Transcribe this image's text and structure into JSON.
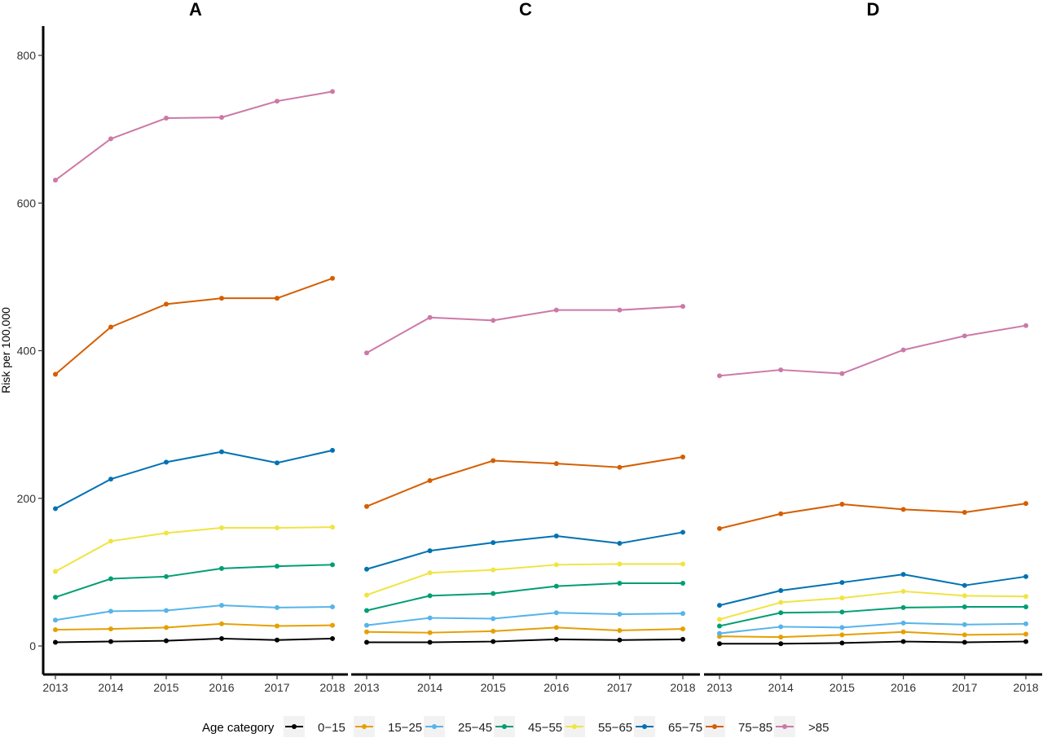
{
  "chart_data": {
    "type": "line",
    "ylabel": "Risk per 100,000",
    "ylim": [
      -40,
      840
    ],
    "yticks": [
      0,
      200,
      400,
      600,
      800
    ],
    "x": [
      "2013",
      "2014",
      "2015",
      "2016",
      "2017",
      "2018"
    ],
    "legend": {
      "title": "Age category",
      "placement": "bottom",
      "entries": [
        "0−15",
        "15−25",
        "25−45",
        "45−55",
        "55−65",
        "65−75",
        "75−85",
        ">85"
      ]
    },
    "colors": {
      "0−15": "#000000",
      "15−25": "#E69F00",
      "25−45": "#56B4E9",
      "45−55": "#009E73",
      "55−65": "#F0E442",
      "65−75": "#0072B2",
      "75−85": "#D55E00",
      ">85": "#CC79A7"
    },
    "panels": [
      {
        "title": "A",
        "series": [
          {
            "name": "0−15",
            "values": [
              5,
              6,
              7,
              10,
              8,
              10
            ]
          },
          {
            "name": "15−25",
            "values": [
              22,
              23,
              25,
              30,
              27,
              28
            ]
          },
          {
            "name": "25−45",
            "values": [
              35,
              47,
              48,
              55,
              52,
              53
            ]
          },
          {
            "name": "45−55",
            "values": [
              66,
              91,
              94,
              105,
              108,
              110
            ]
          },
          {
            "name": "55−65",
            "values": [
              101,
              142,
              153,
              160,
              160,
              161
            ]
          },
          {
            "name": "65−75",
            "values": [
              186,
              226,
              249,
              263,
              248,
              265
            ]
          },
          {
            "name": "75−85",
            "values": [
              368,
              432,
              463,
              471,
              471,
              498
            ]
          },
          {
            "name": ">85",
            "values": [
              631,
              687,
              715,
              716,
              738,
              751
            ]
          }
        ]
      },
      {
        "title": "C",
        "series": [
          {
            "name": "0−15",
            "values": [
              5,
              5,
              6,
              9,
              8,
              9
            ]
          },
          {
            "name": "15−25",
            "values": [
              19,
              18,
              20,
              25,
              21,
              23
            ]
          },
          {
            "name": "25−45",
            "values": [
              28,
              38,
              37,
              45,
              43,
              44
            ]
          },
          {
            "name": "45−55",
            "values": [
              48,
              68,
              71,
              81,
              85,
              85
            ]
          },
          {
            "name": "55−65",
            "values": [
              69,
              99,
              103,
              110,
              111,
              111
            ]
          },
          {
            "name": "65−75",
            "values": [
              104,
              129,
              140,
              149,
              139,
              154
            ]
          },
          {
            "name": "75−85",
            "values": [
              189,
              224,
              251,
              247,
              242,
              256
            ]
          },
          {
            ">85": "",
            "name": ">85",
            "values": [
              397,
              445,
              441,
              455,
              455,
              460
            ]
          }
        ]
      },
      {
        "title": "D",
        "series": [
          {
            "name": "0−15",
            "values": [
              3,
              3,
              4,
              6,
              5,
              6
            ]
          },
          {
            "name": "15−25",
            "values": [
              13,
              12,
              15,
              19,
              15,
              16
            ]
          },
          {
            "name": "25−45",
            "values": [
              17,
              26,
              25,
              31,
              29,
              30
            ]
          },
          {
            "name": "45−55",
            "values": [
              27,
              45,
              46,
              52,
              53,
              53
            ]
          },
          {
            "name": "55−65",
            "values": [
              36,
              59,
              65,
              74,
              68,
              67
            ]
          },
          {
            "name": "65−75",
            "values": [
              55,
              75,
              86,
              97,
              82,
              94
            ]
          },
          {
            "name": "75−85",
            "values": [
              159,
              179,
              192,
              185,
              181,
              193
            ]
          },
          {
            "name": ">85",
            "values": [
              366,
              374,
              369,
              401,
              420,
              434
            ]
          }
        ]
      }
    ]
  }
}
